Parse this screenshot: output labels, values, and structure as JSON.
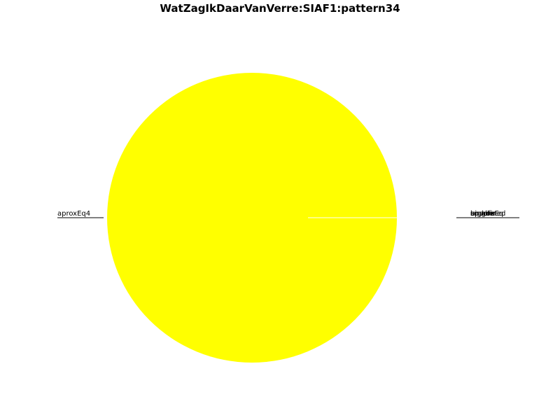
{
  "chart_data": {
    "type": "pie",
    "title": "WatZagIkDaarVanVerre:SIAF1:pattern34",
    "slices": [
      {
        "label": "aproxEq4",
        "value": 100.0,
        "color": "#ffff00"
      },
      {
        "label": "approxEq",
        "value": 0.0,
        "color": "#ffff00"
      },
      {
        "label": "unsure",
        "value": 0.0,
        "color": "#ffff00"
      },
      {
        "label": "bigger",
        "value": 0.0,
        "color": "#ffff00"
      },
      {
        "label": "smaller",
        "value": 0.0,
        "color": "#ffff00"
      },
      {
        "label": "undefined",
        "value": 0.0,
        "color": "#ffff00"
      }
    ]
  }
}
